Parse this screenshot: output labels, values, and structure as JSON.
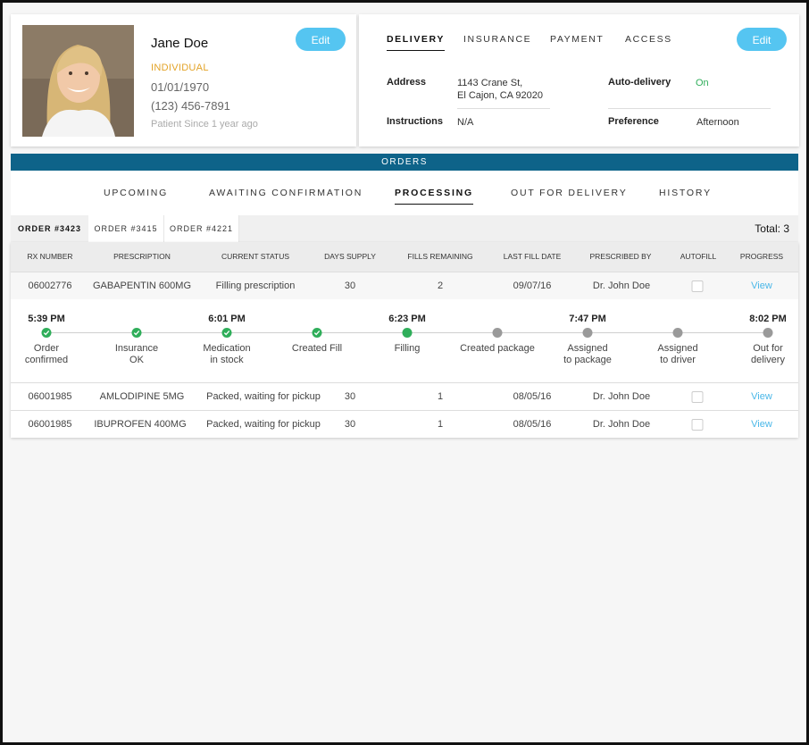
{
  "profile": {
    "name": "Jane Doe",
    "type": "INDIVIDUAL",
    "dob": "01/01/1970",
    "phone": "(123) 456-7891",
    "since": "Patient Since 1 year ago",
    "edit_label": "Edit"
  },
  "delivery": {
    "tabs": [
      "DELIVERY",
      "INSURANCE",
      "PAYMENT",
      "ACCESS"
    ],
    "active_tab": "DELIVERY",
    "edit_label": "Edit",
    "address_label": "Address",
    "address_line1": "1143 Crane St,",
    "address_line2": "El Cajon, CA 92020",
    "instructions_label": "Instructions",
    "instructions_value": "N/A",
    "auto_delivery_label": "Auto-delivery",
    "auto_delivery_value": "On",
    "preference_label": "Preference",
    "preference_value": "Afternoon"
  },
  "orders": {
    "title": "ORDERS",
    "status_tabs": [
      "UPCOMING",
      "AWAITING CONFIRMATION",
      "PROCESSING",
      "OUT FOR DELIVERY",
      "HISTORY"
    ],
    "active_status": "PROCESSING",
    "order_tabs": [
      "ORDER #3423",
      "ORDER #3415",
      "ORDER #4221"
    ],
    "total": "Total: 3",
    "columns": [
      "RX NUMBER",
      "PRESCRIPTION",
      "CURRENT STATUS",
      "DAYS SUPPLY",
      "FILLS REMAINING",
      "LAST FILL DATE",
      "PRESCRIBED BY",
      "AUTOFILL",
      "PROGRESS"
    ],
    "rows": [
      {
        "rx": "06002776",
        "prescription": "GABAPENTIN 600MG",
        "status": "Filling prescription",
        "days": "30",
        "fills": "2",
        "last_fill": "09/07/16",
        "prescriber": "Dr. John Doe",
        "view": "View"
      },
      {
        "rx": "06001985",
        "prescription": "AMLODIPINE 5MG",
        "status": "Packed, waiting for pickup",
        "days": "30",
        "fills": "1",
        "last_fill": "08/05/16",
        "prescriber": "Dr. John Doe",
        "view": "View"
      },
      {
        "rx": "06001985",
        "prescription": "IBUPROFEN  400MG",
        "status": "Packed, waiting for pickup",
        "days": "30",
        "fills": "1",
        "last_fill": "08/05/16",
        "prescriber": "Dr. John Doe",
        "view": "View"
      }
    ],
    "timeline": [
      {
        "time": "5:39 PM",
        "label1": "Order",
        "label2": "confirmed",
        "state": "done"
      },
      {
        "time": "",
        "label1": "Insurance",
        "label2": "OK",
        "state": "done"
      },
      {
        "time": "6:01 PM",
        "label1": "Medication",
        "label2": "in stock",
        "state": "done"
      },
      {
        "time": "",
        "label1": "Created Fill",
        "label2": "",
        "state": "done"
      },
      {
        "time": "6:23 PM",
        "label1": "Filling",
        "label2": "",
        "state": "current"
      },
      {
        "time": "",
        "label1": "Created package",
        "label2": "",
        "state": "pending"
      },
      {
        "time": "7:47 PM",
        "label1": "Assigned",
        "label2": "to package",
        "state": "pending"
      },
      {
        "time": "",
        "label1": "Assigned",
        "label2": "to driver",
        "state": "pending"
      },
      {
        "time": "8:02 PM",
        "label1": "Out for",
        "label2": "delivery",
        "state": "pending"
      }
    ]
  },
  "colors": {
    "accent": "#55c5f1",
    "header_bar": "#0e6389",
    "done": "#2fae5a",
    "pending": "#9a9a9a",
    "on": "#2fae5a",
    "type": "#e3a327"
  }
}
